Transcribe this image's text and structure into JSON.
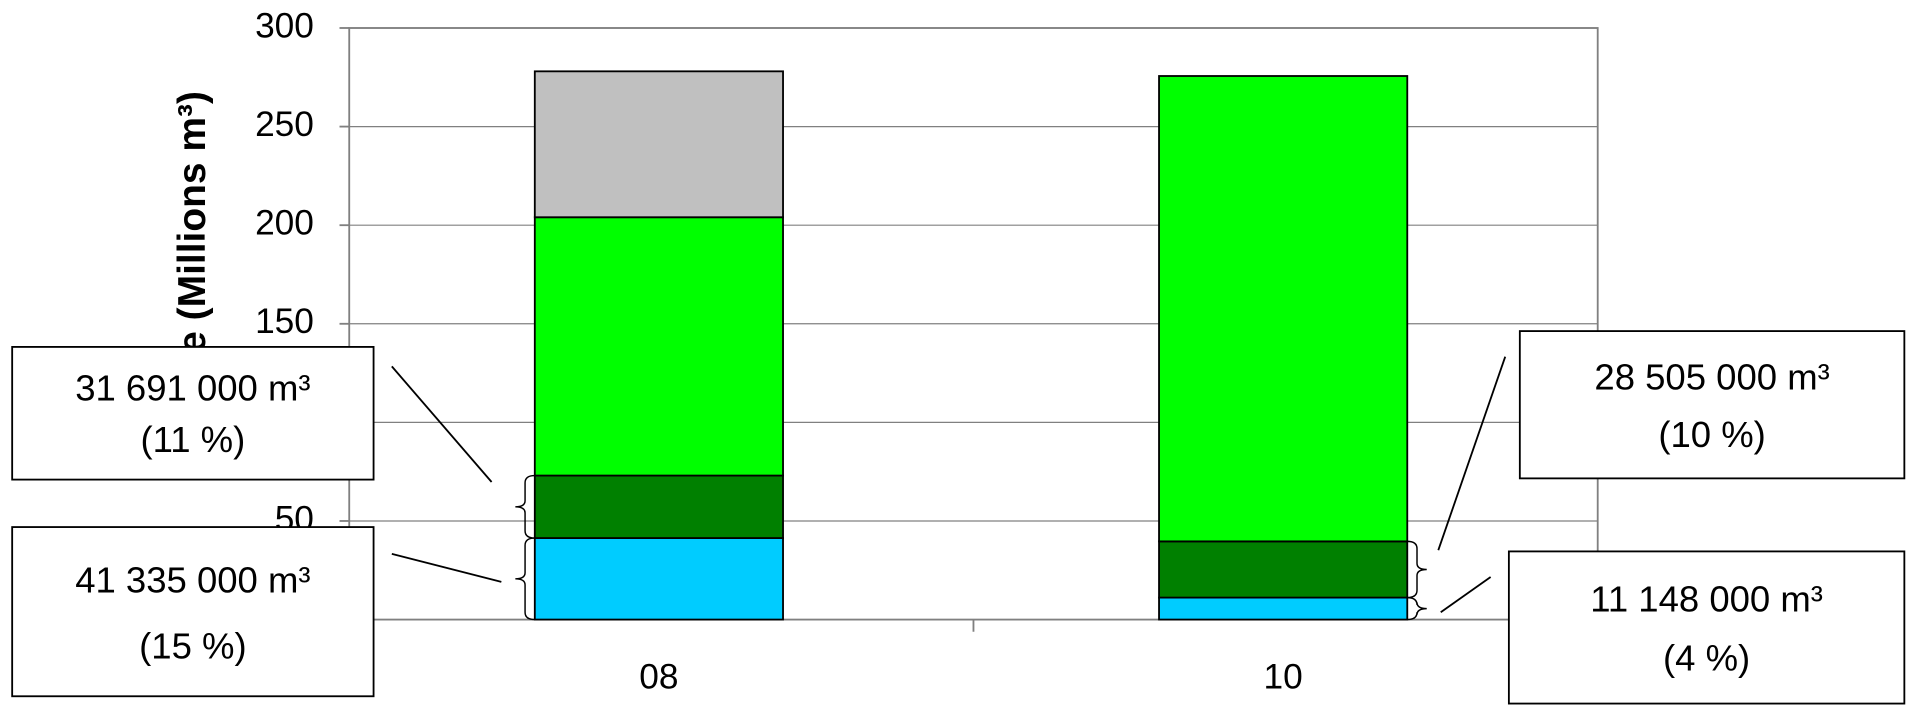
{
  "chart_data": {
    "type": "stacked_bar",
    "y_label": "Volume (Millions m³)",
    "categories": [
      "08",
      "10"
    ],
    "ylim": [
      0,
      300
    ],
    "yticks": [
      0,
      50,
      100,
      150,
      200,
      250,
      300
    ],
    "grid": true,
    "series": [
      {
        "color": "#00ccff",
        "values": [
          41.335,
          11.148
        ],
        "value_labels": [
          "41 335 000 m³",
          "11 148 000 m³"
        ],
        "percent_labels": [
          "(15 %)",
          "(4 %)"
        ]
      },
      {
        "color": "#008000",
        "values": [
          31.691,
          28.505
        ],
        "value_labels": [
          "31 691 000 m³",
          "28 505 000 m³"
        ],
        "percent_labels": [
          "(11 %)",
          "(10 %)"
        ]
      },
      {
        "color": "#00ff00",
        "values": [
          131,
          236
        ]
      },
      {
        "color": "#c0c0c0",
        "values": [
          74,
          null
        ]
      }
    ]
  }
}
